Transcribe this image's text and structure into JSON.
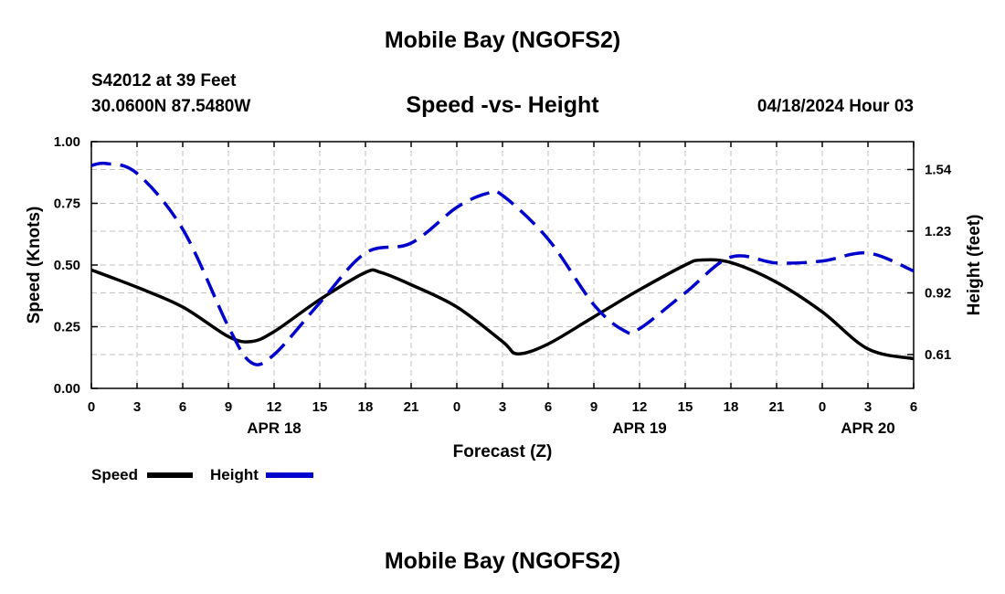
{
  "header": {
    "title": "Mobile Bay (NGOFS2)",
    "station": "S42012 at 39 Feet",
    "coords": "30.0600N  87.5480W",
    "subtitle": "Speed -vs- Height",
    "date": "04/18/2024 Hour 03"
  },
  "footer": {
    "title": "Mobile Bay (NGOFS2)"
  },
  "colors": {
    "speed": "#000000",
    "height": "#0000cc",
    "grid": "#c0c0c0"
  },
  "chart_data": {
    "type": "line",
    "title": "Speed -vs- Height",
    "xlabel": "Forecast (Z)",
    "ylabel": "Speed (Knots)",
    "y2label": "Height (feet)",
    "xlim": [
      0,
      54
    ],
    "ylim": [
      0,
      1
    ],
    "y2lim": [
      0.44,
      1.68
    ],
    "x_ticks": [
      0,
      3,
      6,
      9,
      12,
      15,
      18,
      21,
      24,
      27,
      30,
      33,
      36,
      39,
      42,
      45,
      48,
      51,
      54
    ],
    "x_tick_labels": [
      "0",
      "3",
      "6",
      "9",
      "12",
      "15",
      "18",
      "21",
      "0",
      "3",
      "6",
      "9",
      "12",
      "15",
      "18",
      "21",
      "0",
      "3",
      "6"
    ],
    "y_ticks": [
      0,
      0.25,
      0.5,
      0.75,
      1.0
    ],
    "y_tick_labels": [
      "0.00",
      "0.25",
      "0.50",
      "0.75",
      "1.00"
    ],
    "y2_ticks": [
      0.61,
      0.92,
      1.23,
      1.54
    ],
    "y2_tick_labels": [
      "0.61",
      "0.92",
      "1.23",
      "1.54"
    ],
    "date_labels": [
      {
        "x": 12,
        "label": "APR 18"
      },
      {
        "x": 36,
        "label": "APR 19"
      },
      {
        "x": 51,
        "label": "APR 20"
      }
    ],
    "series": [
      {
        "name": "Speed",
        "axis": "left",
        "style": "solid",
        "x": [
          0,
          3,
          6,
          9,
          10.5,
          12,
          15,
          18,
          19,
          21,
          24,
          27,
          28,
          30,
          33,
          36,
          39,
          40,
          42,
          45,
          48,
          51,
          54
        ],
        "values": [
          0.48,
          0.41,
          0.33,
          0.21,
          0.19,
          0.23,
          0.36,
          0.47,
          0.47,
          0.42,
          0.33,
          0.19,
          0.14,
          0.18,
          0.29,
          0.4,
          0.5,
          0.52,
          0.51,
          0.43,
          0.31,
          0.16,
          0.12
        ]
      },
      {
        "name": "Height",
        "axis": "right",
        "style": "dashed",
        "x": [
          0,
          1,
          3,
          6,
          9,
          10.5,
          12,
          15,
          18,
          21,
          24,
          26,
          27,
          30,
          33,
          35,
          36,
          39,
          42,
          45,
          48,
          51,
          54
        ],
        "values": [
          1.56,
          1.57,
          1.52,
          1.24,
          0.75,
          0.57,
          0.61,
          0.87,
          1.12,
          1.17,
          1.35,
          1.42,
          1.41,
          1.19,
          0.86,
          0.73,
          0.74,
          0.92,
          1.1,
          1.07,
          1.08,
          1.12,
          1.03
        ]
      }
    ]
  }
}
